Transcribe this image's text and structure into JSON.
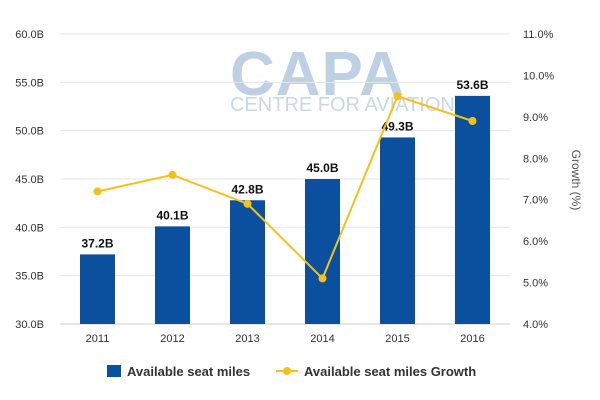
{
  "watermark": {
    "brand": "CAPA",
    "tagline": "CENTRE FOR AVIATION"
  },
  "colors": {
    "bars": "#0a509e",
    "line": "#f5c01a",
    "grid": "#e6e6e6"
  },
  "chart_data": {
    "type": "bar",
    "categories": [
      "2011",
      "2012",
      "2013",
      "2014",
      "2015",
      "2016"
    ],
    "series": [
      {
        "name": "Available seat miles",
        "type": "bar",
        "axis": "left",
        "values": [
          37.2,
          40.1,
          42.8,
          45.0,
          49.3,
          53.6
        ],
        "labels": [
          "37.2B",
          "40.1B",
          "42.8B",
          "45.0B",
          "49.3B",
          "53.6B"
        ]
      },
      {
        "name": "Available seat miles Growth",
        "type": "line",
        "axis": "right",
        "values": [
          7.2,
          7.6,
          6.9,
          5.1,
          9.5,
          8.9
        ]
      }
    ],
    "y_left": {
      "ylim": [
        30,
        60
      ],
      "ticks": [
        30,
        35,
        40,
        45,
        50,
        55,
        60
      ],
      "tick_labels": [
        "30.0B",
        "35.0B",
        "40.0B",
        "45.0B",
        "50.0B",
        "55.0B",
        "60.0B"
      ]
    },
    "y_right": {
      "label": "Growth (%)",
      "ylim": [
        4,
        11
      ],
      "ticks": [
        4,
        5,
        6,
        7,
        8,
        9,
        10,
        11
      ],
      "tick_labels": [
        "4.0%",
        "5.0%",
        "6.0%",
        "7.0%",
        "8.0%",
        "9.0%",
        "10.0%",
        "11.0%"
      ]
    },
    "grid": true,
    "legend_position": "bottom-center"
  }
}
